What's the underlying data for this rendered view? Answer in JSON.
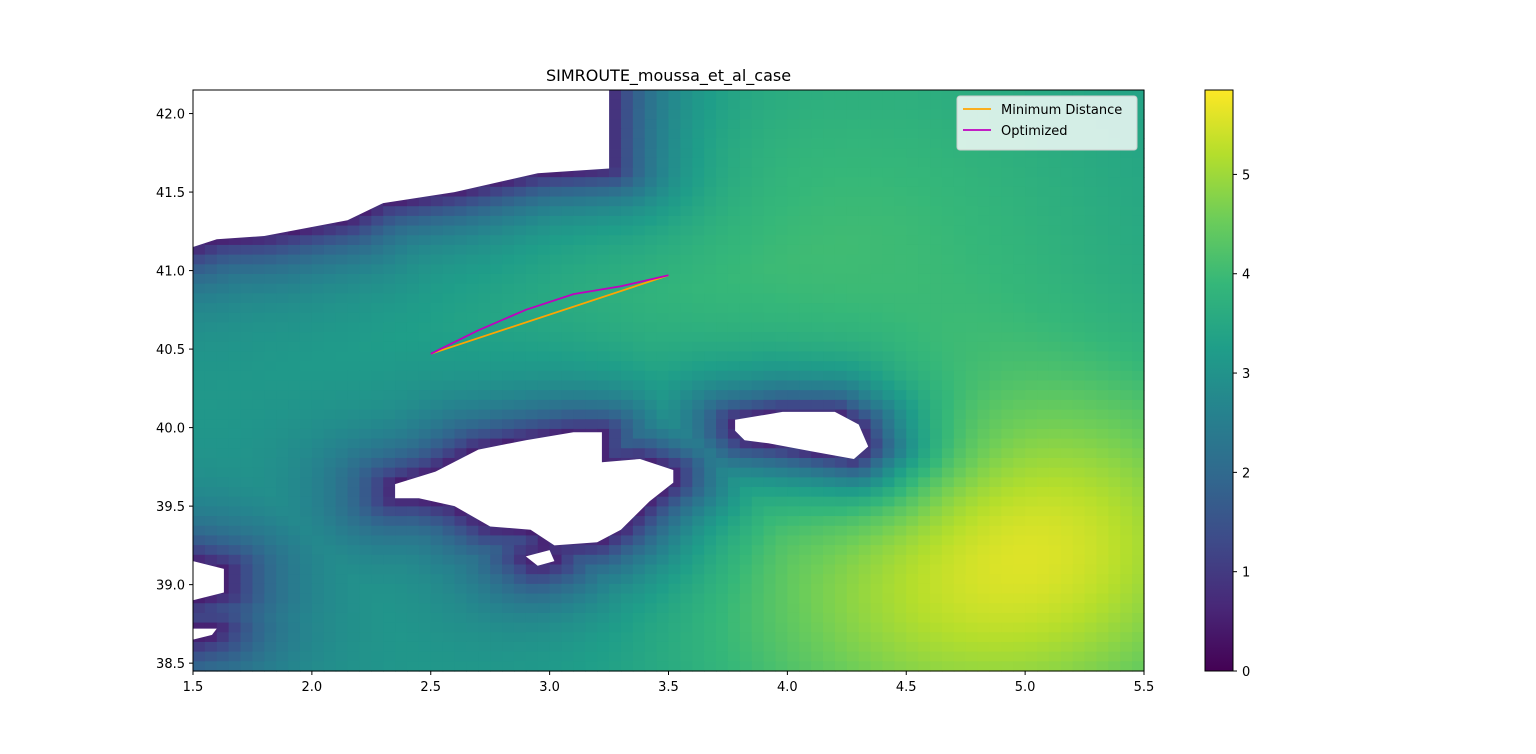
{
  "chart_data": {
    "type": "heatmap",
    "title": "SIMROUTE_moussa_et_al_case",
    "xlim": [
      1.5,
      5.5
    ],
    "ylim": [
      38.45,
      42.15
    ],
    "x_ticks": [
      {
        "value": 1.5,
        "label": "1.5"
      },
      {
        "value": 2.0,
        "label": "2.0"
      },
      {
        "value": 2.5,
        "label": "2.5"
      },
      {
        "value": 3.0,
        "label": "3.0"
      },
      {
        "value": 3.5,
        "label": "3.5"
      },
      {
        "value": 4.0,
        "label": "4.0"
      },
      {
        "value": 4.5,
        "label": "4.5"
      },
      {
        "value": 5.0,
        "label": "5.0"
      },
      {
        "value": 5.5,
        "label": "5.5"
      }
    ],
    "y_ticks": [
      {
        "value": 38.5,
        "label": "38.5"
      },
      {
        "value": 39.0,
        "label": "39.0"
      },
      {
        "value": 39.5,
        "label": "39.5"
      },
      {
        "value": 40.0,
        "label": "40.0"
      },
      {
        "value": 40.5,
        "label": "40.5"
      },
      {
        "value": 41.0,
        "label": "41.0"
      },
      {
        "value": 41.5,
        "label": "41.5"
      },
      {
        "value": 42.0,
        "label": "42.0"
      }
    ],
    "colormap": "viridis",
    "colorbar": {
      "range": [
        0,
        5.85
      ],
      "ticks": [
        {
          "value": 0,
          "label": "0"
        },
        {
          "value": 1,
          "label": "1"
        },
        {
          "value": 2,
          "label": "2"
        },
        {
          "value": 3,
          "label": "3"
        },
        {
          "value": 4,
          "label": "4"
        },
        {
          "value": 5,
          "label": "5"
        }
      ]
    },
    "field_sources": [
      {
        "x": 4.8,
        "y": 38.9,
        "amp": 1.9,
        "sigma": 0.85
      },
      {
        "x": 5.2,
        "y": 39.5,
        "amp": 0.8,
        "sigma": 0.6
      },
      {
        "x": 4.1,
        "y": 41.2,
        "amp": 0.9,
        "sigma": 1.1
      }
    ],
    "land": [
      {
        "name": "mainland-coast",
        "polygon": [
          [
            1.5,
            42.15
          ],
          [
            3.25,
            42.15
          ],
          [
            3.25,
            41.65
          ],
          [
            2.95,
            41.62
          ],
          [
            2.6,
            41.5
          ],
          [
            2.3,
            41.43
          ],
          [
            2.15,
            41.32
          ],
          [
            1.8,
            41.22
          ],
          [
            1.6,
            41.2
          ],
          [
            1.5,
            41.15
          ]
        ]
      },
      {
        "name": "mallorca",
        "polygon": [
          [
            2.35,
            39.64
          ],
          [
            2.52,
            39.72
          ],
          [
            2.7,
            39.86
          ],
          [
            2.9,
            39.92
          ],
          [
            3.1,
            39.97
          ],
          [
            3.22,
            39.97
          ],
          [
            3.22,
            39.78
          ],
          [
            3.38,
            39.8
          ],
          [
            3.52,
            39.73
          ],
          [
            3.52,
            39.65
          ],
          [
            3.42,
            39.53
          ],
          [
            3.3,
            39.35
          ],
          [
            3.2,
            39.27
          ],
          [
            3.02,
            39.25
          ],
          [
            2.92,
            39.35
          ],
          [
            2.75,
            39.37
          ],
          [
            2.6,
            39.5
          ],
          [
            2.45,
            39.55
          ],
          [
            2.35,
            39.55
          ]
        ]
      },
      {
        "name": "cabrera",
        "polygon": [
          [
            2.9,
            39.18
          ],
          [
            3.0,
            39.22
          ],
          [
            3.02,
            39.15
          ],
          [
            2.95,
            39.12
          ]
        ]
      },
      {
        "name": "menorca",
        "polygon": [
          [
            3.78,
            40.05
          ],
          [
            3.98,
            40.1
          ],
          [
            4.2,
            40.1
          ],
          [
            4.3,
            40.02
          ],
          [
            4.34,
            39.88
          ],
          [
            4.28,
            39.8
          ],
          [
            4.1,
            39.85
          ],
          [
            3.92,
            39.9
          ],
          [
            3.82,
            39.92
          ],
          [
            3.78,
            39.98
          ]
        ]
      },
      {
        "name": "ibiza-fragment",
        "polygon": [
          [
            1.5,
            39.15
          ],
          [
            1.63,
            39.1
          ],
          [
            1.63,
            38.95
          ],
          [
            1.5,
            38.9
          ]
        ]
      },
      {
        "name": "formentera-fragment",
        "polygon": [
          [
            1.5,
            38.72
          ],
          [
            1.6,
            38.72
          ],
          [
            1.58,
            38.68
          ],
          [
            1.5,
            38.65
          ]
        ]
      }
    ],
    "series": [
      {
        "name": "Minimum Distance",
        "color": "#ffa500",
        "x": [
          2.5,
          3.5
        ],
        "y": [
          40.47,
          40.97
        ]
      },
      {
        "name": "Optimized",
        "color": "#bf00bf",
        "x": [
          2.5,
          2.7,
          2.9,
          3.1,
          3.3,
          3.5
        ],
        "y": [
          40.47,
          40.62,
          40.75,
          40.85,
          40.9,
          40.97
        ]
      }
    ],
    "legend": {
      "placement": "top-right"
    }
  }
}
